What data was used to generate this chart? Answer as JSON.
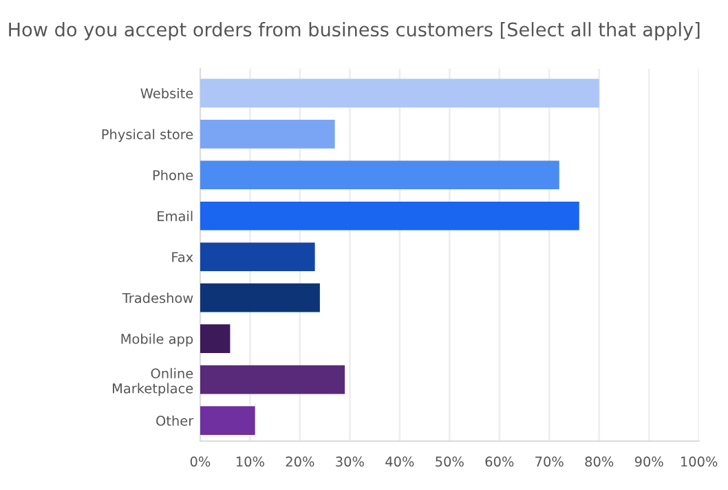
{
  "chart_data": {
    "type": "bar",
    "orientation": "horizontal",
    "title": "How do you accept orders from business customers [Select all that apply]",
    "categories": [
      "Website",
      "Physical store",
      "Phone",
      "Email",
      "Fax",
      "Tradeshow",
      "Mobile app",
      "Online\nMarketplace",
      "Other"
    ],
    "values": [
      80,
      27,
      72,
      76,
      23,
      24,
      6,
      29,
      11
    ],
    "colors": [
      "#adc6f7",
      "#7aa5f5",
      "#4a8cf3",
      "#1a66f0",
      "#1345a6",
      "#0e3478",
      "#3d1a5a",
      "#5a2a7a",
      "#7030a0"
    ],
    "xlim": [
      0,
      100
    ],
    "xticks": [
      {
        "value": 0,
        "label": "0%"
      },
      {
        "value": 10,
        "label": "10%"
      },
      {
        "value": 20,
        "label": "20%"
      },
      {
        "value": 30,
        "label": "30%"
      },
      {
        "value": 40,
        "label": "40%"
      },
      {
        "value": 50,
        "label": "50%"
      },
      {
        "value": 60,
        "label": "60%"
      },
      {
        "value": 70,
        "label": "70%"
      },
      {
        "value": 80,
        "label": "80%"
      },
      {
        "value": 90,
        "label": "90%"
      },
      {
        "value": 100,
        "label": "100%"
      }
    ],
    "grid": "x"
  }
}
